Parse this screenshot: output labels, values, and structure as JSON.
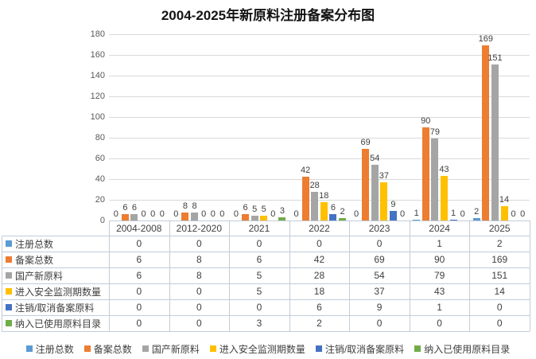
{
  "chart_data": {
    "type": "bar",
    "title": "2004-2025年新原料注册备案分布图",
    "categories": [
      "2004-2008",
      "2012-2020",
      "2021",
      "2022",
      "2023",
      "2024",
      "2025"
    ],
    "series": [
      {
        "name": "注册总数",
        "color": "#5B9BD5",
        "values": [
          0,
          0,
          0,
          0,
          0,
          1,
          2
        ]
      },
      {
        "name": "备案总数",
        "color": "#ED7D31",
        "values": [
          6,
          8,
          6,
          42,
          69,
          90,
          169
        ]
      },
      {
        "name": "国产新原料",
        "color": "#A5A5A5",
        "values": [
          6,
          8,
          5,
          28,
          54,
          79,
          151
        ]
      },
      {
        "name": "进入安全监测期数量",
        "color": "#FFC000",
        "values": [
          0,
          0,
          5,
          18,
          37,
          43,
          14
        ]
      },
      {
        "name": "注销/取消备案原料",
        "color": "#4472C4",
        "values": [
          0,
          0,
          0,
          6,
          9,
          1,
          0
        ]
      },
      {
        "name": "纳入已使用原料目录",
        "color": "#70AD47",
        "values": [
          0,
          0,
          3,
          2,
          0,
          0,
          0
        ]
      }
    ],
    "ylim": [
      0,
      180
    ],
    "yticks": [
      0,
      20,
      40,
      60,
      80,
      100,
      120,
      140,
      160,
      180
    ],
    "grid": true,
    "data_labels": true,
    "legend_position": "bottom",
    "data_table_shown": true,
    "gridline_color": "#D9D9D9",
    "table_border_color": "#C3CDD8",
    "axis_label_color": "#595959",
    "text_color": "#404040"
  }
}
